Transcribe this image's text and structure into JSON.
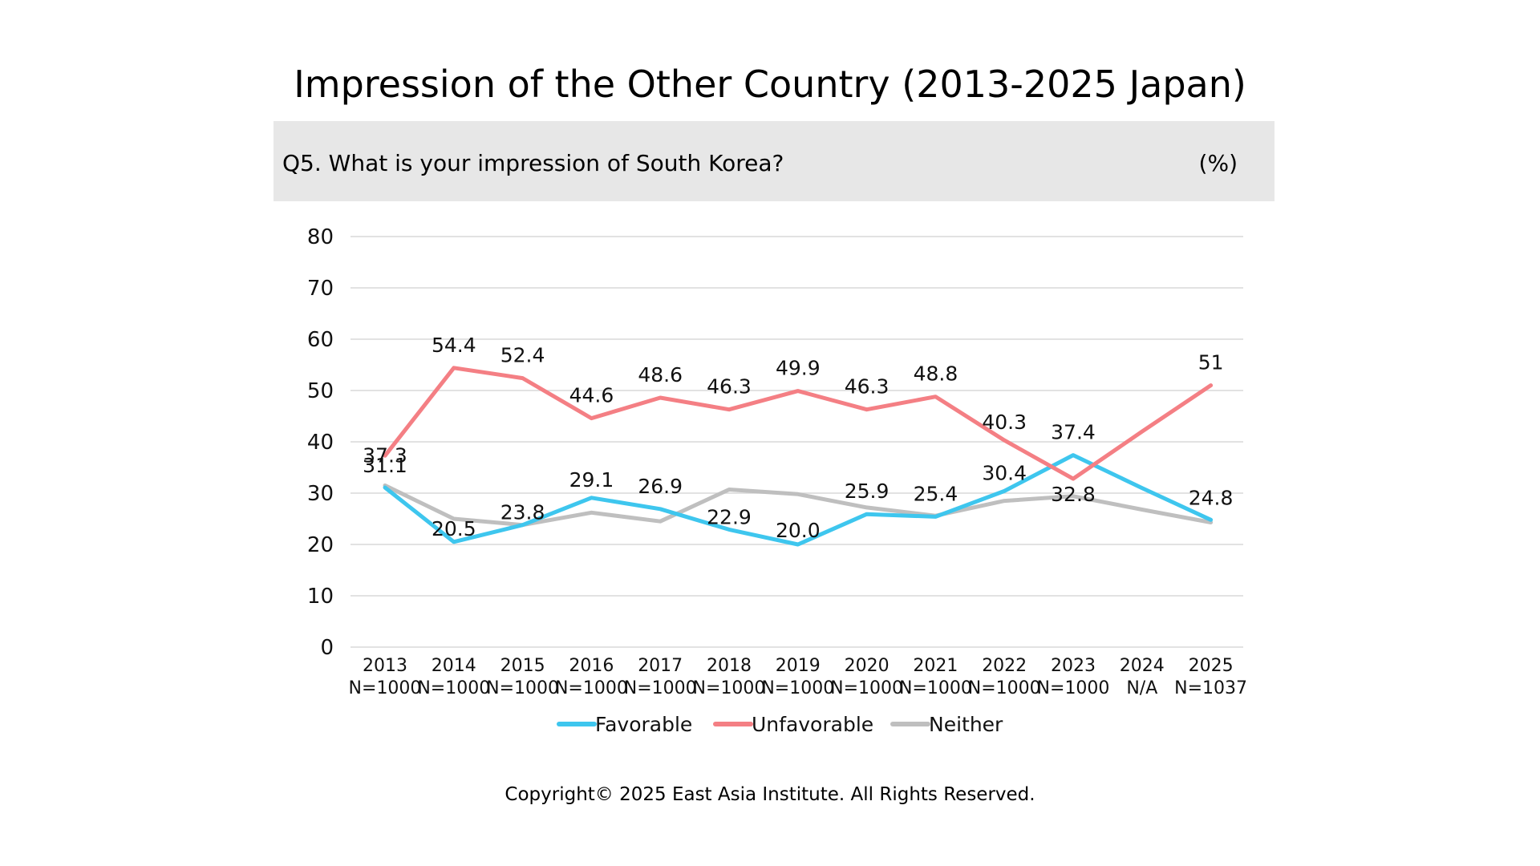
{
  "title": "Impression of the Other Country (2013-2025 Japan)",
  "question": "Q5. What is your impression of South Korea?",
  "unit": "(%)",
  "copyright": "Copyright© 2025 East Asia Institute. All Rights Reserved.",
  "chart_data": {
    "type": "line",
    "categories": [
      "2013",
      "2014",
      "2015",
      "2016",
      "2017",
      "2018",
      "2019",
      "2020",
      "2021",
      "2022",
      "2023",
      "2024",
      "2025"
    ],
    "sample_sizes": [
      "N=1000",
      "N=1000",
      "N=1000",
      "N=1000",
      "N=1000",
      "N=1000",
      "N=1000",
      "N=1000",
      "N=1000",
      "N=1000",
      "N=1000",
      "N/A",
      "N=1037"
    ],
    "ylim": [
      0,
      80
    ],
    "yticks": [
      0,
      10,
      20,
      30,
      40,
      50,
      60,
      70,
      80
    ],
    "grid": true,
    "legend_position": "bottom",
    "series": [
      {
        "name": "Favorable",
        "color": "#3ec6ee",
        "values": [
          31.1,
          20.5,
          23.8,
          29.1,
          26.9,
          22.9,
          20.0,
          25.9,
          25.4,
          30.4,
          37.4,
          31.0,
          24.8
        ],
        "labels": [
          "31.1",
          "20.5",
          "23.8",
          "29.1",
          "26.9",
          "22.9",
          "20.0",
          "25.9",
          "25.4",
          "30.4",
          "37.4",
          "",
          "24.8"
        ]
      },
      {
        "name": "Unfavorable",
        "color": "#f47f84",
        "values": [
          37.3,
          54.4,
          52.4,
          44.6,
          48.6,
          46.3,
          49.9,
          46.3,
          48.8,
          40.3,
          32.8,
          42.0,
          51
        ],
        "labels": [
          "37.3",
          "54.4",
          "52.4",
          "44.6",
          "48.6",
          "46.3",
          "49.9",
          "46.3",
          "48.8",
          "40.3",
          "32.8",
          "",
          "51"
        ]
      },
      {
        "name": "Neither",
        "color": "#bfbfbf",
        "values": [
          31.5,
          25.0,
          23.8,
          26.2,
          24.5,
          30.7,
          29.8,
          27.2,
          25.6,
          28.5,
          29.4,
          26.8,
          24.3
        ],
        "labels": [
          "",
          "",
          "",
          "",
          "",
          "",
          "",
          "",
          "",
          "",
          "",
          "",
          ""
        ]
      }
    ]
  }
}
